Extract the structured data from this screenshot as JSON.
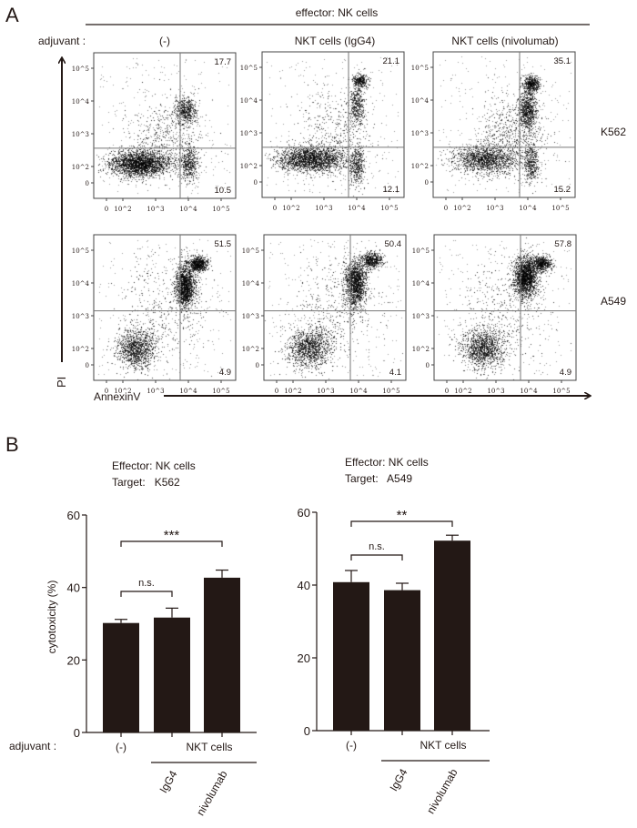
{
  "figure": {
    "panel_a_label": "A",
    "panel_b_label": "B"
  },
  "chart_data": [
    {
      "type": "scatter",
      "title": "effector: NK cells",
      "column_prefix": "adjuvant :",
      "columns": [
        "(-)",
        "NKT cells (IgG4)",
        "NKT cells (nivolumab)"
      ],
      "rows": [
        "K562",
        "A549"
      ],
      "xlabel": "AnnexinV",
      "ylabel": "PI",
      "x_ticks": [
        "0",
        "10^2",
        "10^3",
        "10^4",
        "10^5"
      ],
      "y_ticks": [
        "0",
        "10^2",
        "10^3",
        "10^4",
        "10^5"
      ],
      "scale": "log",
      "quadrants": {
        "upper_right": [
          [
            "17.7",
            "21.1",
            "35.1"
          ],
          [
            "51.5",
            "50.4",
            "57.8"
          ]
        ],
        "lower_right": [
          [
            "10.5",
            "12.1",
            "15.2"
          ],
          [
            "4.9",
            "4.1",
            "4.9"
          ]
        ]
      }
    },
    {
      "type": "bar",
      "title": "Effector: NK cells",
      "subtitle": "Target:   K562",
      "ylabel": "cytotoxicity (%)",
      "ylim": [
        0,
        60
      ],
      "yticks": [
        "0",
        "20",
        "40",
        "60"
      ],
      "adjuvant_label": "adjuvant :",
      "categories": [
        "(-)",
        "IgG4",
        "nivolumab"
      ],
      "group_label": "NKT cells",
      "values": [
        30.2,
        31.7,
        42.7
      ],
      "errors": [
        1.0,
        2.6,
        2.1
      ],
      "bar_color": "#231815",
      "significance": [
        {
          "from": 0,
          "to": 1,
          "label": "n.s."
        },
        {
          "from": 0,
          "to": 2,
          "label": "***"
        }
      ]
    },
    {
      "type": "bar",
      "title": "Effector: NK cells",
      "subtitle": "Target:   A549",
      "ylim": [
        0,
        60
      ],
      "yticks": [
        "0",
        "20",
        "40",
        "60"
      ],
      "categories": [
        "(-)",
        "IgG4",
        "nivolumab"
      ],
      "group_label": "NKT cells",
      "values": [
        40.8,
        38.6,
        52.2
      ],
      "errors": [
        3.2,
        1.9,
        1.5
      ],
      "bar_color": "#231815",
      "significance": [
        {
          "from": 0,
          "to": 1,
          "label": "n.s."
        },
        {
          "from": 0,
          "to": 2,
          "label": "**"
        }
      ]
    }
  ]
}
